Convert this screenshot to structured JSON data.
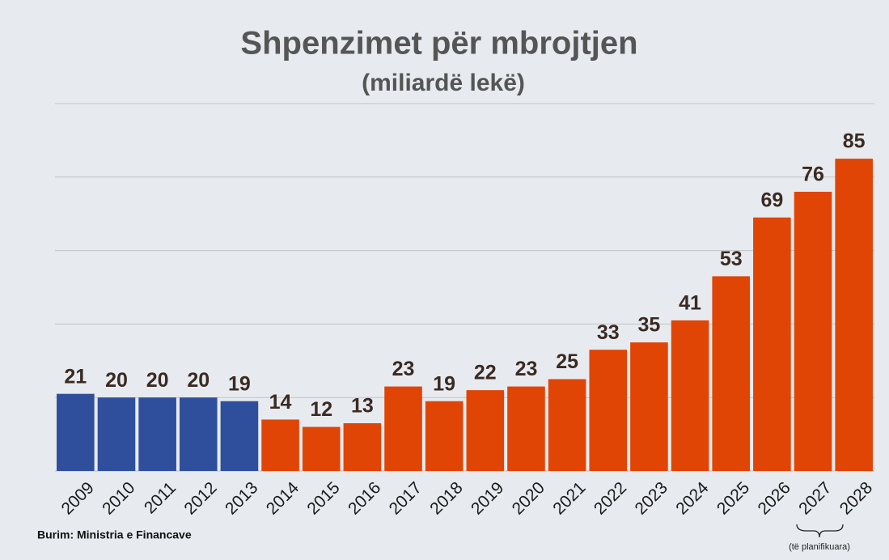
{
  "chart_data": {
    "type": "bar",
    "title": "Shpenzimet për mbrojtjen",
    "subtitle": "(miliardë lekë)",
    "categories": [
      "2009",
      "2010",
      "2011",
      "2012",
      "2013",
      "2014",
      "2015",
      "2016",
      "2017",
      "2018",
      "2019",
      "2020",
      "2021",
      "2022",
      "2023",
      "2024",
      "2025",
      "2026",
      "2027",
      "2028"
    ],
    "values": [
      21,
      20,
      20,
      20,
      19,
      14,
      12,
      13,
      23,
      19,
      22,
      23,
      25,
      33,
      35,
      41,
      53,
      69,
      76,
      85
    ],
    "colors": [
      "#2f4f9c",
      "#2f4f9c",
      "#2f4f9c",
      "#2f4f9c",
      "#2f4f9c",
      "#e04506",
      "#e04506",
      "#e04506",
      "#e04506",
      "#e04506",
      "#e04506",
      "#e04506",
      "#e04506",
      "#e04506",
      "#e04506",
      "#e04506",
      "#e04506",
      "#e04506",
      "#e04506",
      "#e04506"
    ],
    "ylim": [
      0,
      100
    ],
    "yticks": [
      0,
      20,
      40,
      60,
      80,
      100
    ],
    "grid": true,
    "source": "Burim: Ministria e Financave",
    "annotation": "(të planifikuara)"
  }
}
